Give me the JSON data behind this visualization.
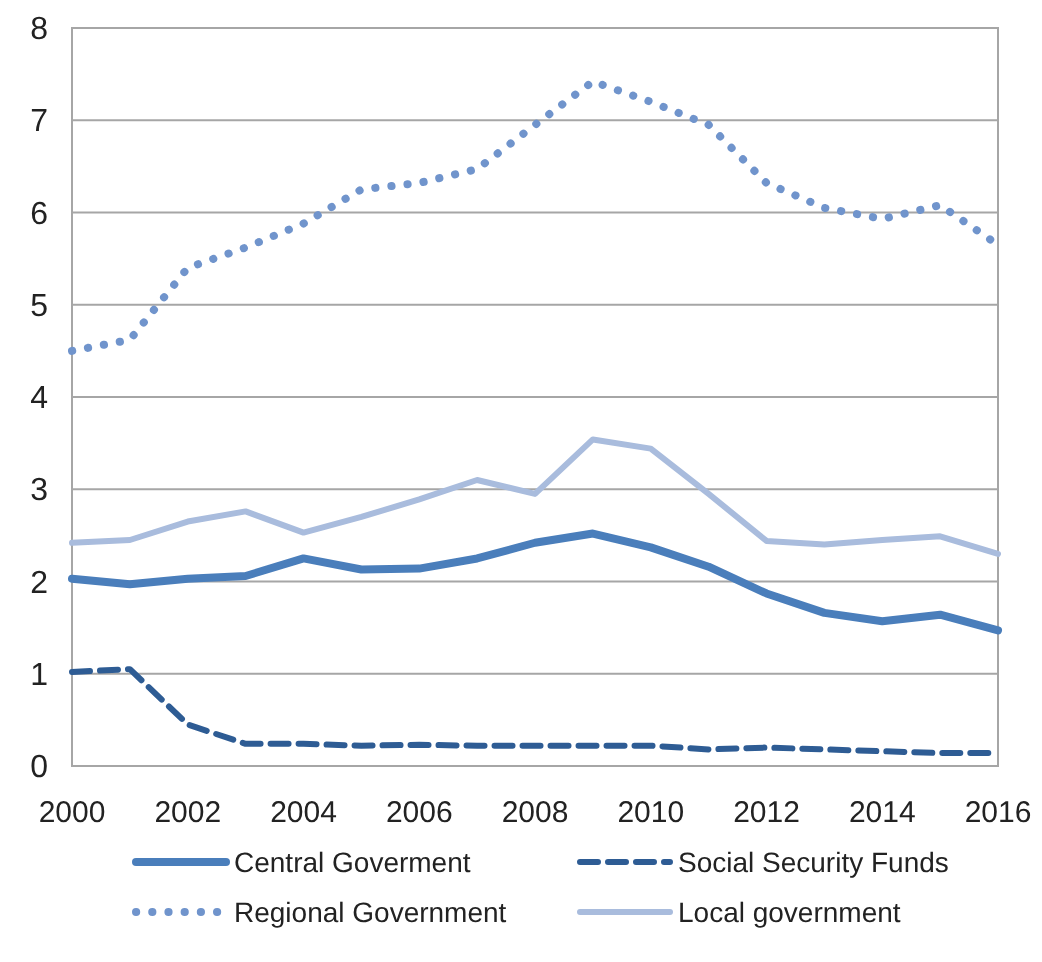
{
  "chart_data": {
    "type": "line",
    "x": [
      2000,
      2001,
      2002,
      2003,
      2004,
      2005,
      2006,
      2007,
      2008,
      2009,
      2010,
      2011,
      2012,
      2013,
      2014,
      2015,
      2016
    ],
    "xlim": [
      2000,
      2016
    ],
    "xticks": [
      2000,
      2002,
      2004,
      2006,
      2008,
      2010,
      2012,
      2014,
      2016
    ],
    "ylim": [
      0,
      8
    ],
    "yticks": [
      0,
      1,
      2,
      3,
      4,
      5,
      6,
      7,
      8
    ],
    "grid": "y",
    "legend": "bottom",
    "series": [
      {
        "name": "Central Goverment",
        "color": "#4a7ebb",
        "line_style": "solid",
        "values": [
          2.03,
          1.97,
          2.03,
          2.06,
          2.25,
          2.13,
          2.14,
          2.25,
          2.42,
          2.52,
          2.37,
          2.16,
          1.87,
          1.66,
          1.57,
          1.64,
          1.47
        ]
      },
      {
        "name": "Social Security Funds",
        "color": "#2e5c94",
        "line_style": "dashed",
        "values": [
          1.02,
          1.05,
          0.45,
          0.24,
          0.24,
          0.22,
          0.23,
          0.22,
          0.22,
          0.22,
          0.22,
          0.18,
          0.2,
          0.18,
          0.16,
          0.14,
          0.14
        ]
      },
      {
        "name": "Regional Government",
        "color": "#7094cc",
        "line_style": "dotted",
        "values": [
          4.5,
          4.62,
          5.4,
          5.62,
          5.88,
          6.25,
          6.32,
          6.47,
          6.95,
          7.42,
          7.2,
          6.95,
          6.32,
          6.05,
          5.93,
          6.08,
          5.65
        ]
      },
      {
        "name": "Local government",
        "color": "#a9bcdd",
        "line_style": "solid",
        "values": [
          2.42,
          2.45,
          2.65,
          2.76,
          2.53,
          2.7,
          2.89,
          3.1,
          2.95,
          3.54,
          3.44,
          2.95,
          2.44,
          2.4,
          2.45,
          2.49,
          2.3
        ]
      }
    ]
  }
}
